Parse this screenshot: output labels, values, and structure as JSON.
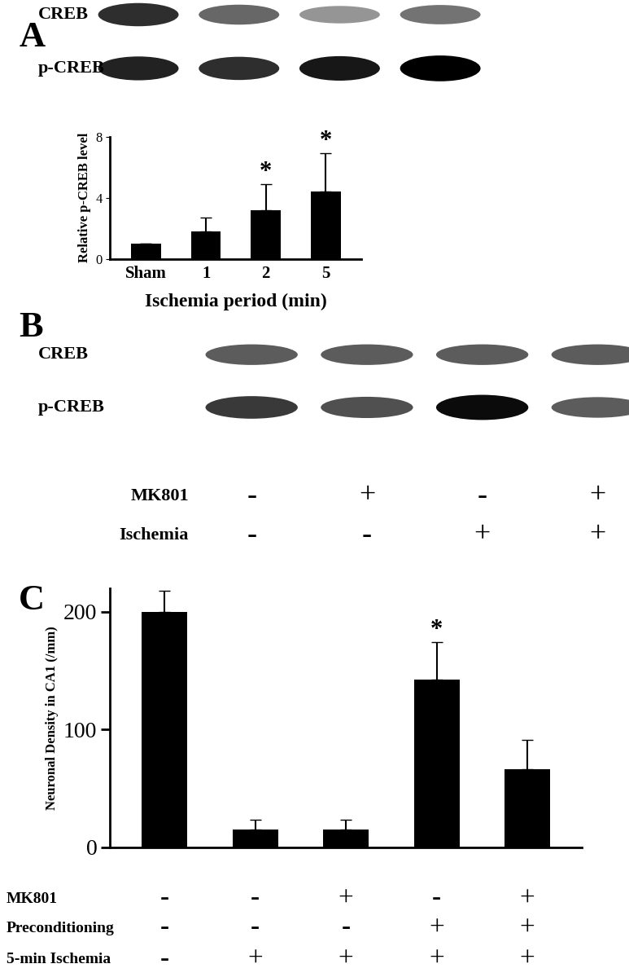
{
  "chart_data": [
    {
      "type": "bar",
      "panel": "A",
      "categories": [
        "Sham",
        "1",
        "2",
        "5"
      ],
      "values": [
        1.0,
        1.8,
        3.2,
        4.4
      ],
      "errors": [
        0,
        0.9,
        1.7,
        2.5
      ],
      "annotations": [
        null,
        null,
        "*",
        "*"
      ],
      "ylabel": "Relative p-CREB level",
      "xlabel": "Ischemia period (min)",
      "ylim": [
        0,
        8
      ],
      "yticks": [
        0,
        4,
        8
      ],
      "color": "#000000"
    },
    {
      "type": "bar",
      "panel": "C",
      "categories": [
        null,
        null,
        null,
        null,
        null
      ],
      "values": [
        200,
        15,
        15,
        142,
        66
      ],
      "errors": [
        18,
        8,
        8,
        32,
        25
      ],
      "annotations": [
        null,
        null,
        null,
        "*",
        null
      ],
      "ylabel": "Neuronal Density in CA1 (/mm)",
      "ylim": [
        0,
        220
      ],
      "yticks": [
        0,
        100,
        200
      ],
      "color": "#000000",
      "condition_rows": [
        {
          "label": "MK801",
          "signs": [
            "-",
            "-",
            "+",
            "-",
            "+"
          ]
        },
        {
          "label": "Preconditioning",
          "signs": [
            "-",
            "-",
            "-",
            "+",
            "+"
          ]
        },
        {
          "label": "5-min Ischemia",
          "signs": [
            "-",
            "+",
            "+",
            "+",
            "+"
          ]
        }
      ]
    }
  ],
  "blots": [
    {
      "panel": "A",
      "bands": [
        {
          "label": "CREB",
          "intensities": [
            0.8,
            0.55,
            0.35,
            0.5
          ]
        },
        {
          "label": "p-CREB",
          "intensities": [
            0.85,
            0.8,
            0.9,
            1.0
          ]
        }
      ]
    },
    {
      "panel": "B",
      "bands": [
        {
          "label": "CREB",
          "intensities": [
            0.6,
            0.6,
            0.6,
            0.6
          ]
        },
        {
          "label": "p-CREB",
          "intensities": [
            0.75,
            0.65,
            0.95,
            0.6
          ]
        }
      ],
      "condition_rows": [
        {
          "label": "MK801",
          "signs": [
            "-",
            "+",
            "-",
            "+"
          ]
        },
        {
          "label": "Ischemia",
          "signs": [
            "-",
            "-",
            "+",
            "+"
          ]
        }
      ]
    }
  ]
}
